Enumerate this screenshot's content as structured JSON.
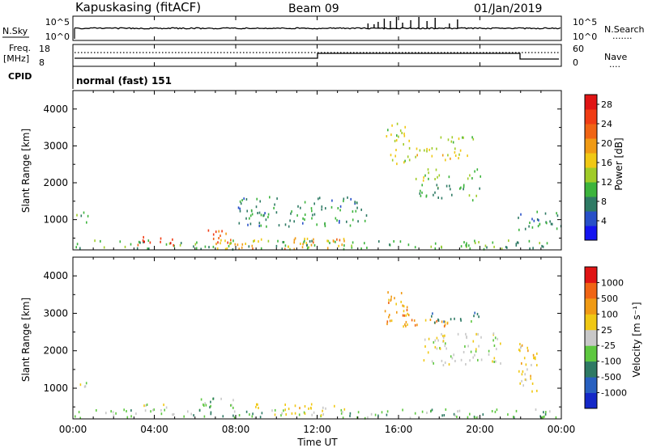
{
  "header": {
    "station": "Kapuskasing (fitACF)",
    "beam": "Beam 09",
    "date": "01/Jan/2019"
  },
  "noise_panel": {
    "left_label": "N.Sky",
    "left_ticks": [
      "10^5",
      "10^0"
    ],
    "right_ticks": [
      "10^5",
      "10^0"
    ],
    "right_label": "N.Search",
    "right_key": "......."
  },
  "freq_panel": {
    "left_label_1": "Freq.",
    "left_label_2": "[MHz]",
    "left_ticks": [
      "18",
      "8"
    ],
    "right_ticks": [
      "60",
      "0"
    ],
    "right_label": "Nave",
    "right_key": "....",
    "cpid_label": "CPID"
  },
  "cpid_text": "normal (fast) 151",
  "chart_data": [
    {
      "type": "heatmap",
      "name": "power",
      "ylabel": "Slant Range [km]",
      "xlabel": "Time UT",
      "x_ticks": [
        "00:00",
        "04:00",
        "08:00",
        "12:00",
        "16:00",
        "20:00",
        "00:00"
      ],
      "xlim_hours": [
        0,
        24
      ],
      "ylim_km": [
        180,
        4500
      ],
      "y_ticks": [
        1000,
        2000,
        3000,
        4000
      ],
      "colorbar": {
        "label": "Power [dB]",
        "ticks": [
          4,
          8,
          12,
          16,
          20,
          24,
          28
        ],
        "range": [
          0,
          30
        ],
        "colors": [
          "#1414f0",
          "#2850c8",
          "#2e7a64",
          "#3cb43c",
          "#a0cc28",
          "#f0c814",
          "#f09a14",
          "#f06414",
          "#f03c14",
          "#e01414"
        ]
      },
      "regions": [
        {
          "t": [
            0.0,
            0.8
          ],
          "r": [
            850,
            1180
          ],
          "v": 9
        },
        {
          "t": [
            0.0,
            24.0
          ],
          "r": [
            180,
            420
          ],
          "v": 10
        },
        {
          "t": [
            2.8,
            5.0
          ],
          "r": [
            260,
            520
          ],
          "v": 27
        },
        {
          "t": [
            6.4,
            7.8
          ],
          "r": [
            320,
            700
          ],
          "v": 24
        },
        {
          "t": [
            7.0,
            13.5
          ],
          "r": [
            180,
            500
          ],
          "v": 19
        },
        {
          "t": [
            8.0,
            14.5
          ],
          "r": [
            800,
            1600
          ],
          "v": 8
        },
        {
          "t": [
            15.3,
            16.5
          ],
          "r": [
            2500,
            3600
          ],
          "v": 14
        },
        {
          "t": [
            16.5,
            19.5
          ],
          "r": [
            2600,
            2950
          ],
          "v": 16
        },
        {
          "t": [
            16.8,
            20.5
          ],
          "r": [
            2050,
            2350
          ],
          "v": 12
        },
        {
          "t": [
            17.0,
            20.0
          ],
          "r": [
            1500,
            1950
          ],
          "v": 9
        },
        {
          "t": [
            17.2,
            19.8
          ],
          "r": [
            3050,
            3250
          ],
          "v": 13
        },
        {
          "t": [
            21.8,
            24.0
          ],
          "r": [
            700,
            1200
          ],
          "v": 7
        }
      ]
    },
    {
      "type": "heatmap",
      "name": "velocity",
      "ylabel": "Slant Range [km]",
      "xlabel": "Time UT",
      "x_ticks": [
        "00:00",
        "04:00",
        "08:00",
        "12:00",
        "16:00",
        "20:00",
        "00:00"
      ],
      "xlim_hours": [
        0,
        24
      ],
      "ylim_km": [
        180,
        4500
      ],
      "y_ticks": [
        1000,
        2000,
        3000,
        4000
      ],
      "colorbar": {
        "label": "Velocity [m s⁻¹]",
        "ticks": [
          "1000",
          "500",
          "100",
          "25",
          "-25",
          "-100",
          "-500",
          "-1000"
        ],
        "colors": [
          "#1428c8",
          "#2860c0",
          "#2e7a64",
          "#5ec840",
          "#c8c8c8",
          "#f0c814",
          "#f09a14",
          "#f06414",
          "#e01414"
        ]
      },
      "regions": [
        {
          "t": [
            0.0,
            0.8
          ],
          "r": [
            850,
            1180
          ],
          "v": 4
        },
        {
          "t": [
            0.0,
            24.0
          ],
          "r": [
            180,
            420
          ],
          "v": 3
        },
        {
          "t": [
            3.0,
            5.0
          ],
          "r": [
            260,
            560
          ],
          "v": 4
        },
        {
          "t": [
            6.0,
            8.0
          ],
          "r": [
            320,
            720
          ],
          "v": 3
        },
        {
          "t": [
            8.5,
            13.5
          ],
          "r": [
            260,
            560
          ],
          "v": 5
        },
        {
          "t": [
            15.3,
            16.5
          ],
          "r": [
            2600,
            3600
          ],
          "v": 6
        },
        {
          "t": [
            16.2,
            18.5
          ],
          "r": [
            2600,
            2850
          ],
          "v": 6
        },
        {
          "t": [
            17.5,
            20.0
          ],
          "r": [
            2700,
            3000
          ],
          "v": 2
        },
        {
          "t": [
            17.0,
            21.0
          ],
          "r": [
            1600,
            2450
          ],
          "v": 4
        },
        {
          "t": [
            21.8,
            23.0
          ],
          "r": [
            900,
            2200
          ],
          "v": 5
        }
      ]
    }
  ]
}
